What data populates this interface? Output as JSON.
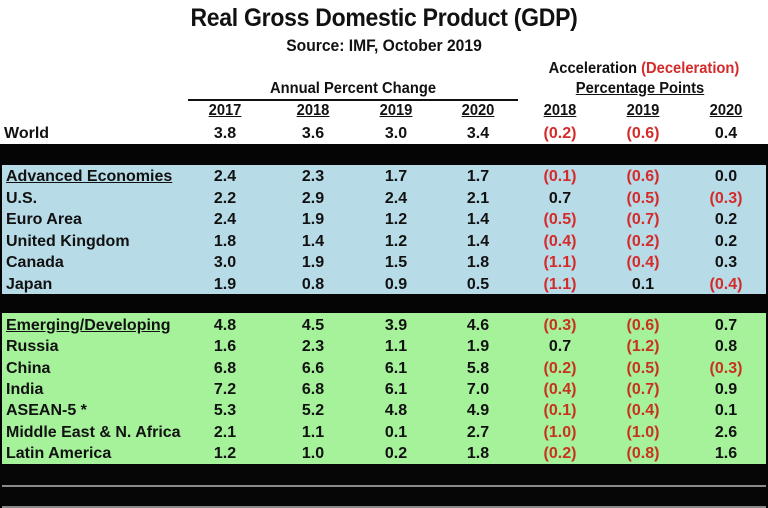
{
  "header": {
    "title": "Real Gross Domestic Product (GDP)",
    "subtitle": "Source:  IMF, October 2019",
    "acceleration_label": "Acceleration",
    "deceleration_label": "(Deceleration)",
    "percentage_points_label": "Percentage Points",
    "annual_change_label": "Annual Percent Change",
    "annual_years": [
      "2017",
      "2018",
      "2019",
      "2020"
    ],
    "accel_years": [
      "2018",
      "2019",
      "2020"
    ]
  },
  "colors": {
    "negative_text": "#d42a2a",
    "advanced_band": "#b7dbe7",
    "emerging_band": "#a5f29a",
    "separator": "#050505"
  },
  "chart_data": {
    "type": "table",
    "title": "Real Gross Domestic Product (GDP)",
    "subtitle": "Source:  IMF, October 2019",
    "columns": [
      "",
      "2017",
      "2018",
      "2019",
      "2020",
      "2018",
      "2019",
      "2020"
    ],
    "column_groups": [
      {
        "label": "Annual Percent Change",
        "columns": [
          "2017",
          "2018",
          "2019",
          "2020"
        ]
      },
      {
        "label": "Acceleration (Deceleration) Percentage Points",
        "columns": [
          "2018",
          "2019",
          "2020"
        ]
      }
    ],
    "world": {
      "label": "World",
      "values": [
        "3.8",
        "3.6",
        "3.0",
        "3.4"
      ],
      "accel": [
        "(0.2)",
        "(0.6)",
        "0.4"
      ]
    },
    "advanced": [
      {
        "label": "Advanced Economies",
        "heading": true,
        "values": [
          "2.4",
          "2.3",
          "1.7",
          "1.7"
        ],
        "accel": [
          "(0.1)",
          "(0.6)",
          "0.0"
        ]
      },
      {
        "label": "U.S.",
        "values": [
          "2.2",
          "2.9",
          "2.4",
          "2.1"
        ],
        "accel": [
          "0.7",
          "(0.5)",
          "(0.3)"
        ]
      },
      {
        "label": "Euro Area",
        "values": [
          "2.4",
          "1.9",
          "1.2",
          "1.4"
        ],
        "accel": [
          "(0.5)",
          "(0.7)",
          "0.2"
        ]
      },
      {
        "label": "United Kingdom",
        "values": [
          "1.8",
          "1.4",
          "1.2",
          "1.4"
        ],
        "accel": [
          "(0.4)",
          "(0.2)",
          "0.2"
        ]
      },
      {
        "label": "Canada",
        "values": [
          "3.0",
          "1.9",
          "1.5",
          "1.8"
        ],
        "accel": [
          "(1.1)",
          "(0.4)",
          "0.3"
        ]
      },
      {
        "label": "Japan",
        "values": [
          "1.9",
          "0.8",
          "0.9",
          "0.5"
        ],
        "accel": [
          "(1.1)",
          "0.1",
          "(0.4)"
        ]
      }
    ],
    "emerging": [
      {
        "label": "Emerging/Developing",
        "heading": true,
        "values": [
          "4.8",
          "4.5",
          "3.9",
          "4.6"
        ],
        "accel": [
          "(0.3)",
          "(0.6)",
          "0.7"
        ]
      },
      {
        "label": "Russia",
        "values": [
          "1.6",
          "2.3",
          "1.1",
          "1.9"
        ],
        "accel": [
          "0.7",
          "(1.2)",
          "0.8"
        ]
      },
      {
        "label": "China",
        "values": [
          "6.8",
          "6.6",
          "6.1",
          "5.8"
        ],
        "accel": [
          "(0.2)",
          "(0.5)",
          "(0.3)"
        ]
      },
      {
        "label": "India",
        "values": [
          "7.2",
          "6.8",
          "6.1",
          "7.0"
        ],
        "accel": [
          "(0.4)",
          "(0.7)",
          "0.9"
        ]
      },
      {
        "label": "ASEAN-5 *",
        "values": [
          "5.3",
          "5.2",
          "4.8",
          "4.9"
        ],
        "accel": [
          "(0.1)",
          "(0.4)",
          "0.1"
        ]
      },
      {
        "label": "Middle East & N. Africa",
        "values": [
          "2.1",
          "1.1",
          "0.1",
          "2.7"
        ],
        "accel": [
          "(1.0)",
          "(1.0)",
          "2.6"
        ]
      },
      {
        "label": "Latin America",
        "values": [
          "1.2",
          "1.0",
          "0.2",
          "1.8"
        ],
        "accel": [
          "(0.2)",
          "(0.8)",
          "1.6"
        ]
      }
    ]
  }
}
